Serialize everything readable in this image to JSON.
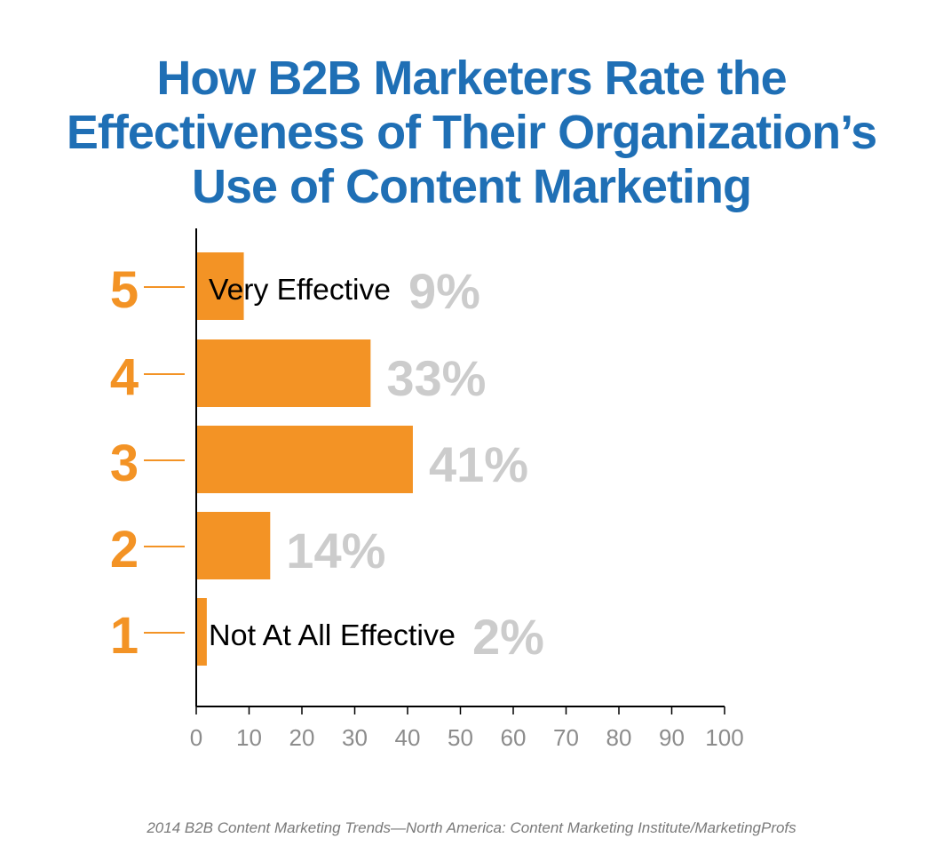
{
  "title_lines": [
    "How B2B Marketers Rate the",
    "Effectiveness of Their Organization’s",
    "Use of Content Marketing"
  ],
  "source": "2014 B2B Content Marketing Trends—North America: Content Marketing Institute/MarketingProfs",
  "colors": {
    "title": "#1f6fb5",
    "bar": "#f39325",
    "rating": "#f39325",
    "value_label": "#cccccc",
    "axis": "#000000",
    "tick_label": "#8c8c8c"
  },
  "chart_data": {
    "type": "bar",
    "orientation": "horizontal",
    "title": "How B2B Marketers Rate the Effectiveness of Their Organization’s Use of Content Marketing",
    "categories": [
      "5",
      "4",
      "3",
      "2",
      "1"
    ],
    "values": [
      9,
      33,
      41,
      14,
      2
    ],
    "value_labels": [
      "9%",
      "33%",
      "41%",
      "14%",
      "2%"
    ],
    "annotations": [
      {
        "category": "5",
        "text": "Very Effective"
      },
      {
        "category": "1",
        "text": "Not At All Effective"
      }
    ],
    "xlim": [
      0,
      100
    ],
    "xticks": [
      0,
      10,
      20,
      30,
      40,
      50,
      60,
      70,
      80,
      90,
      100
    ],
    "grid": false,
    "legend": "none"
  }
}
